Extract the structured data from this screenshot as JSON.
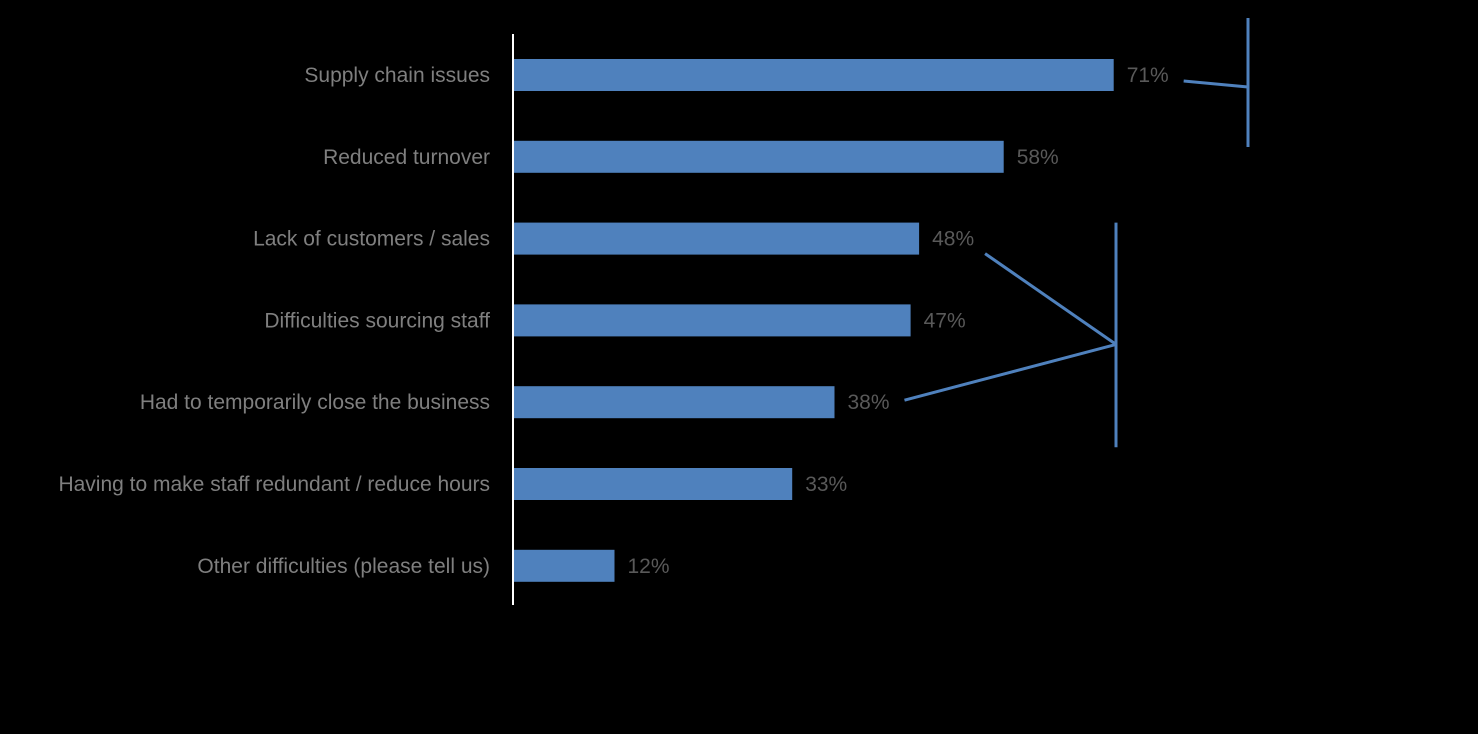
{
  "chart_data": {
    "type": "bar",
    "orientation": "horizontal",
    "categories": [
      "Supply chain issues",
      "Reduced turnover",
      "Lack of customers / sales",
      "Difficulties sourcing staff",
      "Had to temporarily close the business",
      "Having to make staff redundant / reduce hours",
      "Other difficulties (please tell us)"
    ],
    "values": [
      71,
      58,
      48,
      47,
      38,
      33,
      12
    ],
    "value_labels": [
      "71%",
      "58%",
      "48%",
      "47%",
      "38%",
      "33%",
      "12%"
    ],
    "unit": "%",
    "xlim": [
      0,
      100
    ],
    "grid": false,
    "legend": "none",
    "bracket_groups": [
      {
        "members": [
          "Supply chain issues"
        ]
      },
      {
        "members": [
          "Lack of customers / sales",
          "Difficulties sourcing staff",
          "Had to temporarily close the business"
        ]
      }
    ]
  },
  "colors": {
    "background": "#000000",
    "bar": "#4f81bd",
    "bracket": "#4f81bd",
    "axis": "#ffffff",
    "category_label": "#7f7f7f",
    "value_label": "#595959"
  }
}
